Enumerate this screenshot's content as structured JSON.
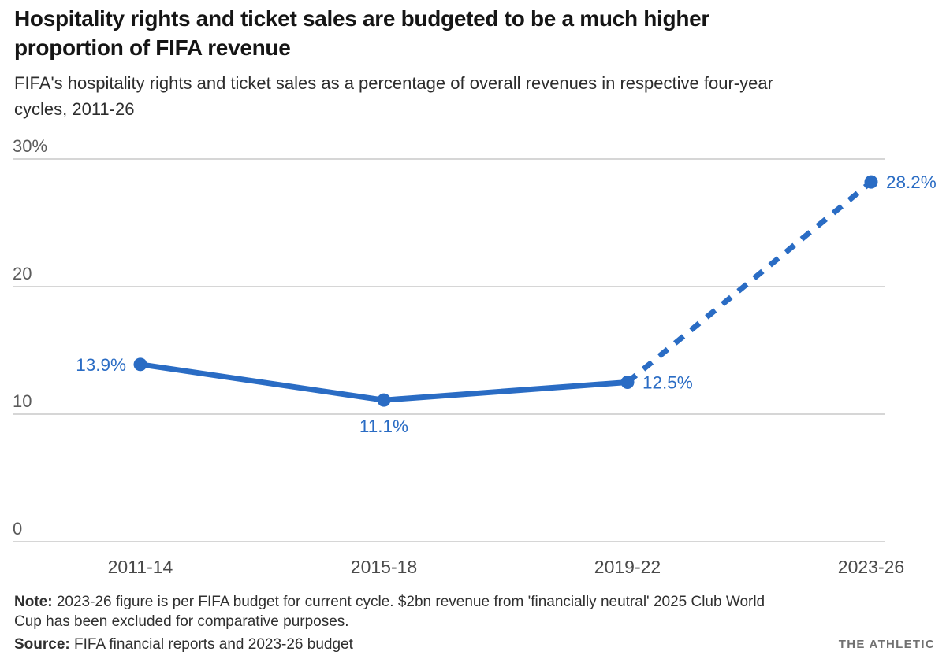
{
  "chart_data": {
    "type": "line",
    "title": "Hospitality rights and ticket sales are budgeted to be a much higher proportion of FIFA revenue",
    "title_lines": [
      "Hospitality rights and ticket sales are budgeted to be a much higher",
      "proportion of FIFA revenue"
    ],
    "subtitle": "FIFA's hospitality rights and ticket sales as a percentage of overall revenues in respective four-year cycles, 2011-26",
    "subtitle_lines": [
      "FIFA's hospitality rights and ticket sales as a percentage of overall revenues in respective four-year",
      "cycles, 2011-26"
    ],
    "categories": [
      "2011-14",
      "2015-18",
      "2019-22",
      "2023-26"
    ],
    "values": [
      13.9,
      11.1,
      12.5,
      28.2
    ],
    "value_labels": [
      "13.9%",
      "11.1%",
      "12.5%",
      "28.2%"
    ],
    "label_positions": [
      "left",
      "below",
      "right",
      "right"
    ],
    "solid_until_index": 2,
    "dashed_segment_note": "segment from 2019-22 to 2023-26 is dashed (budgeted figure)",
    "y_ticks": [
      {
        "value": 30,
        "label": "30%"
      },
      {
        "value": 20,
        "label": "20"
      },
      {
        "value": 10,
        "label": "10"
      },
      {
        "value": 0,
        "label": "0"
      }
    ],
    "ylim": [
      0,
      30
    ],
    "grid": true,
    "legend": "none",
    "colors": {
      "line": "#2a6cc4",
      "grid": "#c9c9c9",
      "axis_label": "#5b5b5b",
      "x_label": "#4a4a4a"
    }
  },
  "footer": {
    "note_label": "Note:",
    "note_lines": [
      " 2023-26 figure is per FIFA budget for current cycle. $2bn revenue from 'financially neutral' 2025 Club World",
      "Cup has been excluded for comparative purposes."
    ],
    "source_label": "Source:",
    "source_text": " FIFA financial reports and 2023-26 budget",
    "brand": "THE ATHLETIC"
  }
}
